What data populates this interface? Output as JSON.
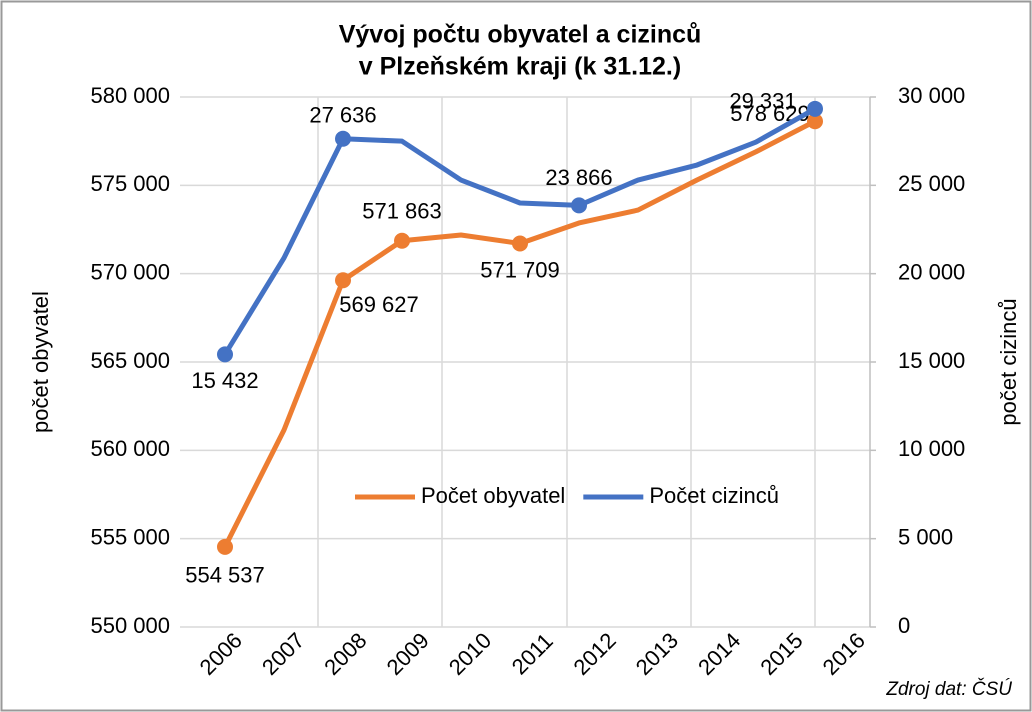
{
  "chart_data": {
    "type": "line",
    "title": "Vývoj počtu obyvatel a cizinců",
    "subtitle": "v Plzeňském kraji (k 31.12.)",
    "y_label": "počet obyvatel",
    "y2_label": "počet cizinců",
    "source": "Zdroj dat: ČSÚ",
    "categories": [
      "2006",
      "2007",
      "2008",
      "2009",
      "2010",
      "2011",
      "2012",
      "2013",
      "2014",
      "2015",
      "2016"
    ],
    "series": [
      {
        "name": "Počet obyvatel",
        "color": "#ed7d31",
        "axis": "y",
        "values": [
          554537,
          561150,
          569627,
          571863,
          572190,
          571709,
          572870,
          573600,
          575300,
          576900,
          578629
        ],
        "value_labels": [
          "554 537",
          null,
          "569 627",
          "571 863",
          null,
          "571 709",
          null,
          null,
          null,
          null,
          "578 629"
        ]
      },
      {
        "name": "Počet cizinců",
        "color": "#4472c4",
        "axis": "y2",
        "values": [
          15432,
          20890,
          27636,
          27500,
          25300,
          24000,
          23866,
          25300,
          26150,
          27450,
          29331
        ],
        "value_labels": [
          "15 432",
          null,
          "27 636",
          null,
          null,
          null,
          "23 866",
          null,
          null,
          null,
          "29 331"
        ]
      }
    ],
    "ylim": [
      550000,
      580000
    ],
    "yticks": [
      {
        "value": 550000,
        "label": "550 000"
      },
      {
        "value": 555000,
        "label": "555 000"
      },
      {
        "value": 560000,
        "label": "560 000"
      },
      {
        "value": 565000,
        "label": "565 000"
      },
      {
        "value": 570000,
        "label": "570 000"
      },
      {
        "value": 575000,
        "label": "575 000"
      },
      {
        "value": 580000,
        "label": "580 000"
      }
    ],
    "y2lim": [
      0,
      30000
    ],
    "y2ticks": [
      0,
      {
        "value": 5000,
        "label": "5 000"
      },
      {
        "value": 10000,
        "label": "10 000"
      },
      {
        "value": 15000,
        "label": "15 000"
      },
      {
        "value": 20000,
        "label": "20 000"
      },
      {
        "value": 25000,
        "label": "25 000"
      },
      {
        "value": 30000,
        "label": "30 000"
      }
    ],
    "grid": true,
    "legend": "center"
  }
}
